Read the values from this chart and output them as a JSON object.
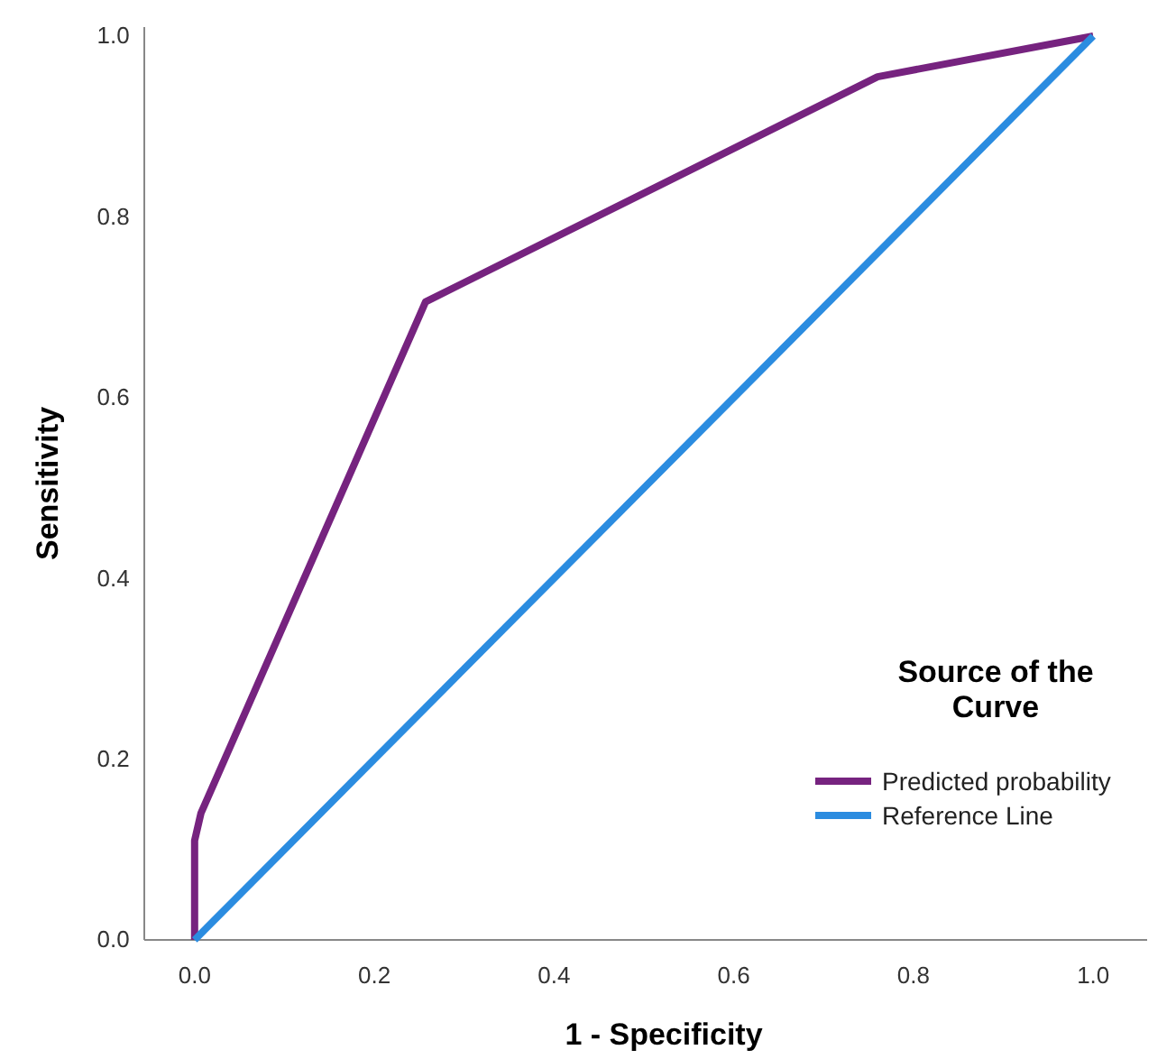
{
  "chart_data": {
    "type": "line",
    "xlabel": "1 - Specificity",
    "ylabel": "Sensitivity",
    "legend_title": "Source of the Curve",
    "legend": "bottom right",
    "grid": false,
    "marker": "none",
    "line_style": "solid",
    "xlim": [
      -0.056,
      1.06
    ],
    "ylim": [
      0,
      1.01
    ],
    "xticks": [
      {
        "value": 0,
        "label": "0.0"
      },
      0.2,
      0.4,
      0.6,
      0.8,
      {
        "value": 1,
        "label": "1.0"
      }
    ],
    "yticks": [
      {
        "value": 0,
        "label": "0.0"
      },
      0.2,
      0.4,
      0.6,
      0.8,
      {
        "value": 1,
        "label": "1.0"
      }
    ],
    "series": [
      {
        "name": "Predicted probability",
        "color": "#76237f",
        "x": [
          0,
          0,
          0.007,
          0.25,
          0.257,
          0.76,
          1
        ],
        "values": [
          0,
          0.11,
          0.14,
          0.69,
          0.706,
          0.955,
          1
        ]
      },
      {
        "name": "Reference Line",
        "color": "#2b8ce0",
        "x": [
          0,
          1
        ],
        "values": [
          0,
          1
        ]
      }
    ]
  }
}
